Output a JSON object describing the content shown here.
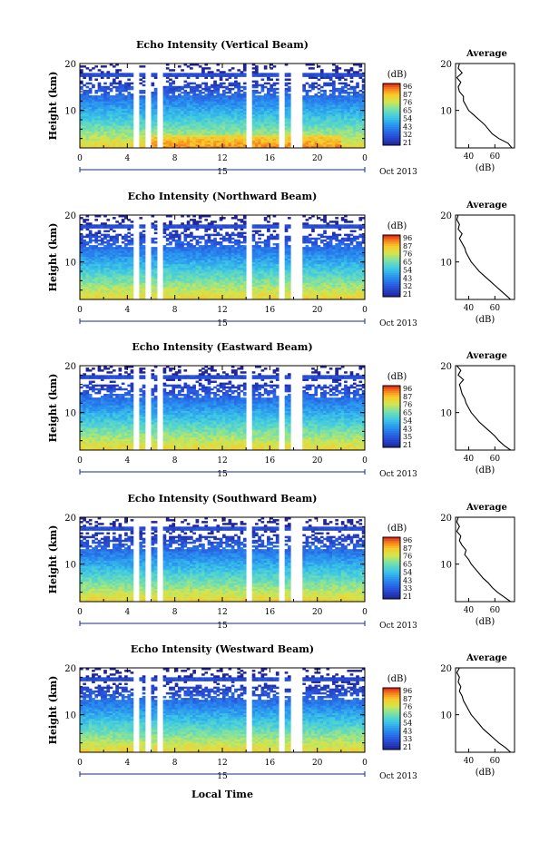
{
  "figure": {
    "xlabel_bottom": "Local Time"
  },
  "chart_data": [
    {
      "type": "heatmap",
      "title": "Echo Intensity (Vertical Beam)",
      "ylabel": "Height (km)",
      "ylim": [
        2,
        20
      ],
      "yticks": [
        "20",
        "10"
      ],
      "xlim": [
        0,
        24
      ],
      "xticks": [
        "0",
        "4",
        "8",
        "12",
        "16",
        "20",
        "0"
      ],
      "date_day": "15",
      "date_label": "Oct 2013",
      "colorbar": {
        "unit": "(dB)",
        "ticks": [
          "96",
          "87",
          "76",
          "65",
          "54",
          "43",
          "32",
          "21"
        ]
      },
      "data_gaps_hours": [
        [
          4.5,
          5.0
        ],
        [
          5.5,
          5.9
        ],
        [
          6.6,
          7.0
        ],
        [
          14.0,
          14.6
        ],
        [
          16.8,
          17.2
        ],
        [
          17.8,
          18.8
        ]
      ],
      "average": {
        "title": "Average",
        "xlabel": "(dB)",
        "xticks": [
          "40",
          "60"
        ],
        "yticks": [
          "20",
          "10"
        ],
        "xlim": [
          30,
          75
        ],
        "ylim": [
          2,
          20
        ],
        "profile": [
          [
            73,
            2
          ],
          [
            70,
            3
          ],
          [
            63,
            4
          ],
          [
            58,
            5
          ],
          [
            55,
            6
          ],
          [
            52,
            7
          ],
          [
            48,
            8
          ],
          [
            44,
            9
          ],
          [
            40,
            10
          ],
          [
            38,
            11
          ],
          [
            36,
            12
          ],
          [
            36,
            13
          ],
          [
            33,
            14
          ],
          [
            32,
            15
          ],
          [
            34,
            16
          ],
          [
            31,
            17
          ],
          [
            35,
            18
          ],
          [
            32,
            19
          ],
          [
            33,
            20
          ]
        ]
      }
    },
    {
      "type": "heatmap",
      "title": "Echo Intensity (Northward Beam)",
      "ylabel": "Height (km)",
      "ylim": [
        2,
        20
      ],
      "yticks": [
        "20",
        "10"
      ],
      "xlim": [
        0,
        24
      ],
      "xticks": [
        "0",
        "4",
        "8",
        "12",
        "16",
        "20",
        "0"
      ],
      "date_day": "15",
      "date_label": "Oct 2013",
      "colorbar": {
        "unit": "(dB)",
        "ticks": [
          "96",
          "87",
          "76",
          "65",
          "54",
          "43",
          "32",
          "21"
        ]
      },
      "data_gaps_hours": [
        [
          4.5,
          5.0
        ],
        [
          5.5,
          5.9
        ],
        [
          6.6,
          7.0
        ],
        [
          14.0,
          14.6
        ],
        [
          16.8,
          17.2
        ],
        [
          17.8,
          18.8
        ]
      ],
      "average": {
        "title": "Average",
        "xlabel": "(dB)",
        "xticks": [
          "40",
          "60"
        ],
        "yticks": [
          "20",
          "10"
        ],
        "xlim": [
          30,
          75
        ],
        "ylim": [
          2,
          20
        ],
        "profile": [
          [
            72,
            2
          ],
          [
            68,
            3
          ],
          [
            64,
            4
          ],
          [
            60,
            5
          ],
          [
            56,
            6
          ],
          [
            52,
            7
          ],
          [
            48,
            8
          ],
          [
            45,
            9
          ],
          [
            42,
            10
          ],
          [
            40,
            11
          ],
          [
            38,
            12
          ],
          [
            37,
            13
          ],
          [
            35,
            14
          ],
          [
            33,
            15
          ],
          [
            35,
            16
          ],
          [
            32,
            17
          ],
          [
            33,
            18
          ],
          [
            31,
            19
          ],
          [
            32,
            20
          ]
        ]
      }
    },
    {
      "type": "heatmap",
      "title": "Echo Intensity (Eastward Beam)",
      "ylabel": "Height (km)",
      "ylim": [
        2,
        20
      ],
      "yticks": [
        "20",
        "10"
      ],
      "xlim": [
        0,
        24
      ],
      "xticks": [
        "0",
        "4",
        "8",
        "12",
        "16",
        "20",
        "0"
      ],
      "date_day": "15",
      "date_label": "Oct 2013",
      "colorbar": {
        "unit": "(dB)",
        "ticks": [
          "96",
          "87",
          "76",
          "65",
          "54",
          "43",
          "35",
          "21"
        ]
      },
      "data_gaps_hours": [
        [
          4.5,
          5.0
        ],
        [
          5.5,
          5.9
        ],
        [
          6.6,
          7.0
        ],
        [
          14.0,
          14.6
        ],
        [
          16.8,
          17.2
        ],
        [
          17.8,
          18.8
        ]
      ],
      "average": {
        "title": "Average",
        "xlabel": "(dB)",
        "xticks": [
          "40",
          "60"
        ],
        "yticks": [
          "20",
          "10"
        ],
        "xlim": [
          30,
          75
        ],
        "ylim": [
          2,
          20
        ],
        "profile": [
          [
            72,
            2
          ],
          [
            67,
            3
          ],
          [
            63,
            4
          ],
          [
            60,
            5
          ],
          [
            56,
            6
          ],
          [
            52,
            7
          ],
          [
            48,
            8
          ],
          [
            45,
            9
          ],
          [
            42,
            10
          ],
          [
            40,
            11
          ],
          [
            38,
            12
          ],
          [
            37,
            13
          ],
          [
            35,
            14
          ],
          [
            34,
            15
          ],
          [
            33,
            16
          ],
          [
            36,
            17
          ],
          [
            32,
            18
          ],
          [
            34,
            19
          ],
          [
            31,
            20
          ]
        ]
      }
    },
    {
      "type": "heatmap",
      "title": "Echo Intensity (Southward Beam)",
      "ylabel": "Height (km)",
      "ylim": [
        2,
        20
      ],
      "yticks": [
        "20",
        "10"
      ],
      "xlim": [
        0,
        24
      ],
      "xticks": [
        "0",
        "4",
        "8",
        "12",
        "16",
        "20",
        "0"
      ],
      "date_day": "15",
      "date_label": "Oct 2013",
      "colorbar": {
        "unit": "(dB)",
        "ticks": [
          "96",
          "87",
          "76",
          "65",
          "54",
          "43",
          "33",
          "21"
        ]
      },
      "data_gaps_hours": [
        [
          4.5,
          5.0
        ],
        [
          5.5,
          5.9
        ],
        [
          6.6,
          7.0
        ],
        [
          14.0,
          14.6
        ],
        [
          16.8,
          17.2
        ],
        [
          17.8,
          18.8
        ]
      ],
      "average": {
        "title": "Average",
        "xlabel": "(dB)",
        "xticks": [
          "40",
          "60"
        ],
        "yticks": [
          "20",
          "10"
        ],
        "xlim": [
          30,
          75
        ],
        "ylim": [
          2,
          20
        ],
        "profile": [
          [
            72,
            2
          ],
          [
            67,
            3
          ],
          [
            62,
            4
          ],
          [
            58,
            5
          ],
          [
            55,
            6
          ],
          [
            51,
            7
          ],
          [
            48,
            8
          ],
          [
            45,
            9
          ],
          [
            42,
            10
          ],
          [
            40,
            11
          ],
          [
            37,
            12
          ],
          [
            38,
            13
          ],
          [
            35,
            14
          ],
          [
            33,
            15
          ],
          [
            34,
            16
          ],
          [
            31,
            17
          ],
          [
            33,
            18
          ],
          [
            31,
            19
          ],
          [
            32,
            20
          ]
        ]
      }
    },
    {
      "type": "heatmap",
      "title": "Echo Intensity (Westward Beam)",
      "ylabel": "Height (km)",
      "ylim": [
        2,
        20
      ],
      "yticks": [
        "20",
        "10"
      ],
      "xlim": [
        0,
        24
      ],
      "xticks": [
        "0",
        "4",
        "8",
        "12",
        "16",
        "20",
        "0"
      ],
      "date_day": "15",
      "date_label": "Oct 2013",
      "colorbar": {
        "unit": "(dB)",
        "ticks": [
          "96",
          "87",
          "76",
          "65",
          "54",
          "43",
          "33",
          "21"
        ]
      },
      "data_gaps_hours": [
        [
          4.5,
          5.0
        ],
        [
          5.5,
          5.9
        ],
        [
          6.6,
          7.0
        ],
        [
          14.0,
          14.6
        ],
        [
          16.8,
          17.2
        ],
        [
          17.8,
          18.8
        ]
      ],
      "average": {
        "title": "Average",
        "xlabel": "(dB)",
        "xticks": [
          "40",
          "60"
        ],
        "yticks": [
          "20",
          "10"
        ],
        "xlim": [
          30,
          75
        ],
        "ylim": [
          2,
          20
        ],
        "profile": [
          [
            72,
            2
          ],
          [
            68,
            3
          ],
          [
            63,
            4
          ],
          [
            59,
            5
          ],
          [
            55,
            6
          ],
          [
            51,
            7
          ],
          [
            48,
            8
          ],
          [
            45,
            9
          ],
          [
            42,
            10
          ],
          [
            40,
            11
          ],
          [
            38,
            12
          ],
          [
            36,
            13
          ],
          [
            35,
            14
          ],
          [
            33,
            15
          ],
          [
            34,
            16
          ],
          [
            32,
            17
          ],
          [
            33,
            18
          ],
          [
            31,
            19
          ],
          [
            33,
            20
          ]
        ]
      }
    }
  ]
}
